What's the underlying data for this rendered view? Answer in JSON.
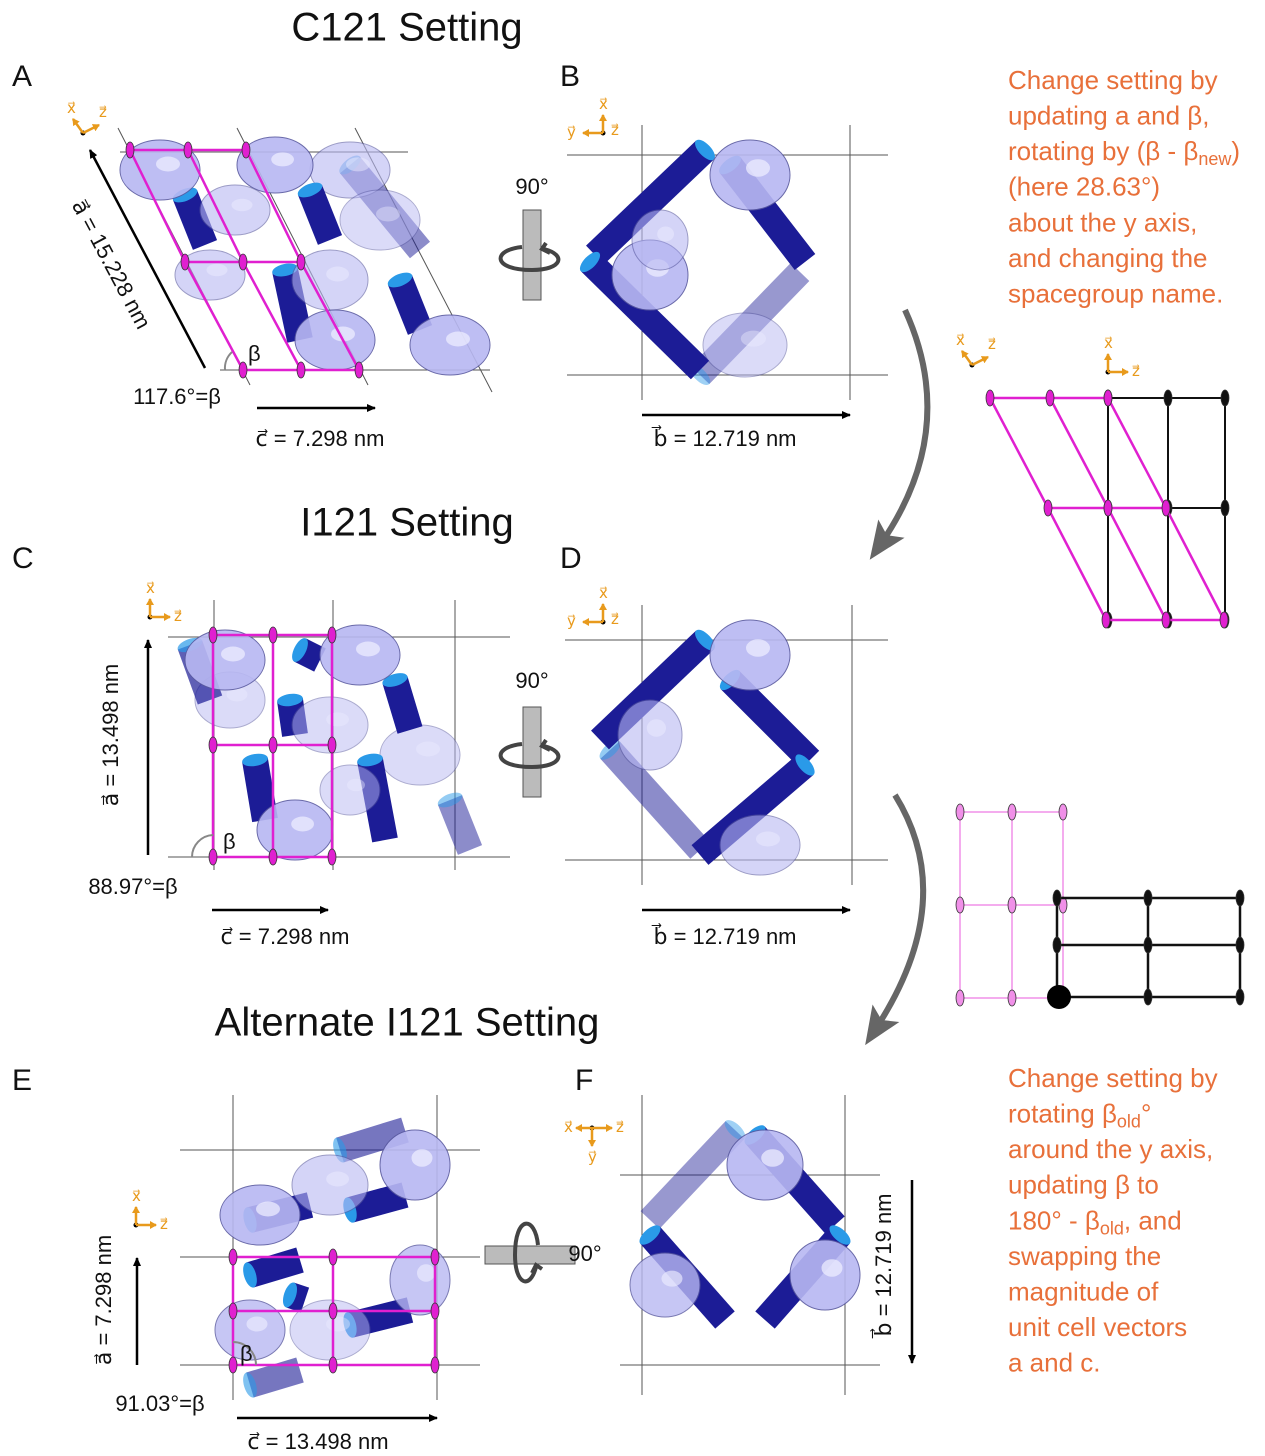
{
  "titles": [
    "C121 Setting",
    "I121 Setting",
    "Alternate I121 Setting"
  ],
  "panel_labels": [
    "A",
    "B",
    "C",
    "D",
    "E",
    "F"
  ],
  "axis_labels": {
    "x": "x⃗",
    "y": "y⃗",
    "z": "z⃗"
  },
  "rotation_label": "90°",
  "beta_symbol": "β",
  "panel_a": {
    "a_vector": "a⃗ = 15.228 nm",
    "beta": "117.6°=β",
    "c_vector": "c⃗ = 7.298 nm"
  },
  "panel_b": {
    "b_vector": "b⃗ = 12.719 nm"
  },
  "panel_c": {
    "a_vector": "a⃗ = 13.498 nm",
    "beta": "88.97°=β",
    "c_vector": "c⃗ = 7.298 nm"
  },
  "panel_d": {
    "b_vector": "b⃗ = 12.719 nm"
  },
  "panel_e": {
    "a_vector": "a⃗ = 7.298 nm",
    "beta": "91.03°=β",
    "c_vector": "c⃗ = 13.498 nm"
  },
  "panel_f": {
    "b_vector": "b⃗ = 12.719 nm"
  },
  "notes": [
    {
      "lines": [
        "Change setting by",
        "updating a and β,",
        {
          "pre": "rotating by (β - β",
          "sub": "new",
          "post": ")"
        },
        "(here 28.63°)",
        "about the y axis,",
        "and changing the",
        "spacegroup name."
      ]
    },
    {
      "lines": [
        "Change setting by",
        {
          "pre": "rotating β",
          "sub": "old",
          "post": "°"
        },
        "around the y axis,",
        "updating β to",
        {
          "pre": "180° - β",
          "sub": "old",
          "post": ", and"
        },
        "swapping the",
        "magnitude of",
        "unit cell vectors",
        "a and c."
      ]
    }
  ]
}
